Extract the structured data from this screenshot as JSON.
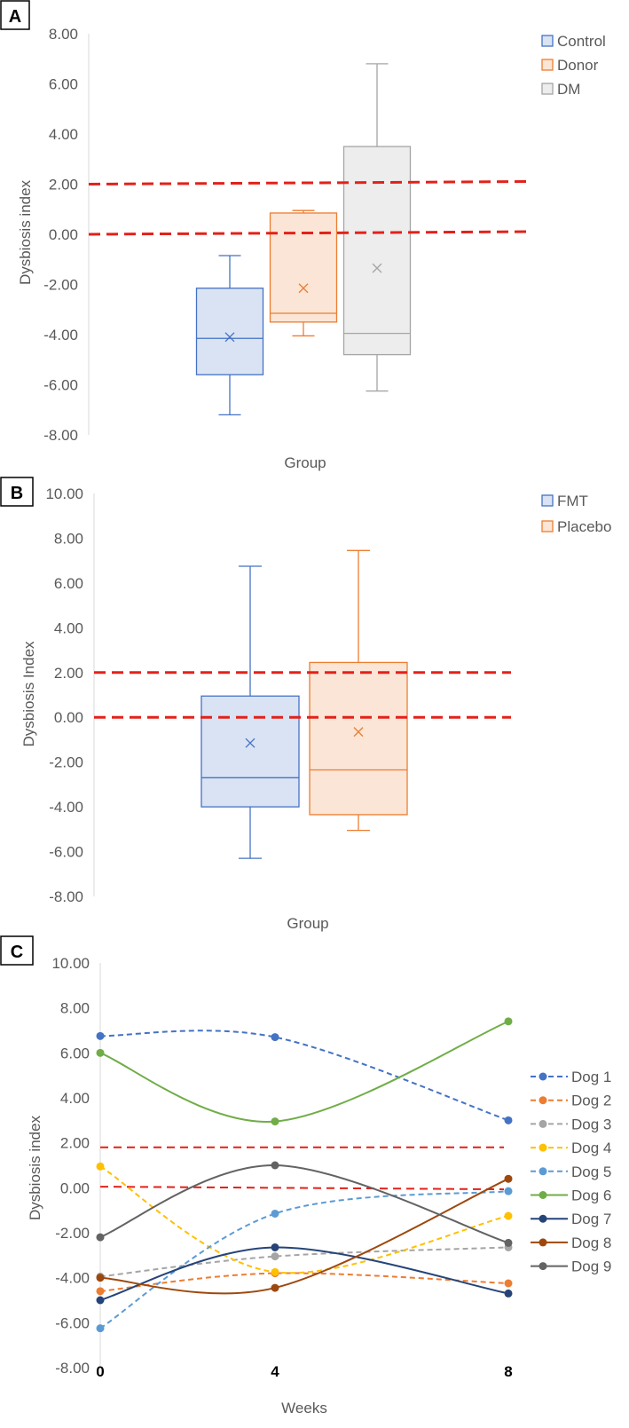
{
  "chart_data": [
    {
      "panel": "A",
      "type": "box",
      "xlabel": "Group",
      "ylabel": "Dysbiosis index",
      "ylim": [
        -8,
        8
      ],
      "yticks": [
        "8.00",
        "6.00",
        "4.00",
        "2.00",
        "0.00",
        "-2.00",
        "-4.00",
        "-6.00",
        "-8.00"
      ],
      "reference_lines": [
        2,
        0
      ],
      "legend_position": "top-right",
      "series": [
        {
          "name": "Control",
          "color": "#4472C4",
          "fill": "#DAE3F3",
          "min": -7.2,
          "q1": -5.6,
          "median": -4.15,
          "mean": -4.1,
          "q3": -2.15,
          "max": -0.85
        },
        {
          "name": "Donor",
          "color": "#ED7D31",
          "fill": "#FBE5D6",
          "min": -4.05,
          "q1": -3.5,
          "median": -3.15,
          "mean": -2.15,
          "q3": 0.85,
          "max": 0.95
        },
        {
          "name": "DM",
          "color": "#A5A5A5",
          "fill": "#EDEDED",
          "min": -6.25,
          "q1": -4.8,
          "median": -3.95,
          "mean": -1.35,
          "q3": 3.5,
          "max": 6.8
        }
      ]
    },
    {
      "panel": "B",
      "type": "box",
      "xlabel": "Group",
      "ylabel": "Dysbiosis Index",
      "ylim": [
        -8,
        10
      ],
      "yticks": [
        "10.00",
        "8.00",
        "6.00",
        "4.00",
        "2.00",
        "0.00",
        "-2.00",
        "-4.00",
        "-6.00",
        "-8.00"
      ],
      "reference_lines": [
        2,
        0
      ],
      "legend_position": "top-right",
      "series": [
        {
          "name": "FMT",
          "color": "#4472C4",
          "fill": "#DAE3F3",
          "min": -6.3,
          "q1": -4.0,
          "median": -2.7,
          "mean": -1.15,
          "q3": 0.95,
          "max": 6.75
        },
        {
          "name": "Placebo",
          "color": "#ED7D31",
          "fill": "#FBE5D6",
          "min": -5.05,
          "q1": -4.35,
          "median": -2.35,
          "mean": -0.65,
          "q3": 2.45,
          "max": 7.45
        }
      ]
    },
    {
      "panel": "C",
      "type": "line",
      "xlabel": "Weeks",
      "ylabel": "Dysbiosis index",
      "x": [
        0,
        4,
        8
      ],
      "xticks": [
        "0",
        "4",
        "8"
      ],
      "ylim": [
        -8,
        10
      ],
      "yticks": [
        "10.00",
        "8.00",
        "6.00",
        "4.00",
        "2.00",
        "0.00",
        "-2.00",
        "-4.00",
        "-6.00",
        "-8.00"
      ],
      "reference_lines": [
        1.8,
        0.05
      ],
      "legend_position": "right",
      "series": [
        {
          "name": "Dog 1",
          "color": "#4472C4",
          "dashed": true,
          "values": [
            6.75,
            6.7,
            3.0
          ]
        },
        {
          "name": "Dog 2",
          "color": "#ED7D31",
          "dashed": true,
          "values": [
            -4.6,
            -3.8,
            -4.25
          ]
        },
        {
          "name": "Dog 3",
          "color": "#A5A5A5",
          "dashed": true,
          "values": [
            -3.95,
            -3.05,
            -2.65
          ]
        },
        {
          "name": "Dog 4",
          "color": "#FFC000",
          "dashed": true,
          "values": [
            0.95,
            -3.75,
            -1.25
          ]
        },
        {
          "name": "Dog 5",
          "color": "#5B9BD5",
          "dashed": true,
          "values": [
            -6.25,
            -1.15,
            -0.15
          ]
        },
        {
          "name": "Dog 6",
          "color": "#70AD47",
          "dashed": false,
          "values": [
            6.0,
            2.95,
            7.4
          ]
        },
        {
          "name": "Dog 7",
          "color": "#264478",
          "dashed": false,
          "values": [
            -5.0,
            -2.65,
            -4.7
          ]
        },
        {
          "name": "Dog 8",
          "color": "#9E480E",
          "dashed": false,
          "values": [
            -4.0,
            -4.45,
            0.4
          ]
        },
        {
          "name": "Dog 9",
          "color": "#636363",
          "dashed": false,
          "values": [
            -2.2,
            1.0,
            -2.45
          ]
        }
      ]
    }
  ],
  "reference_line_color": "#E32119"
}
